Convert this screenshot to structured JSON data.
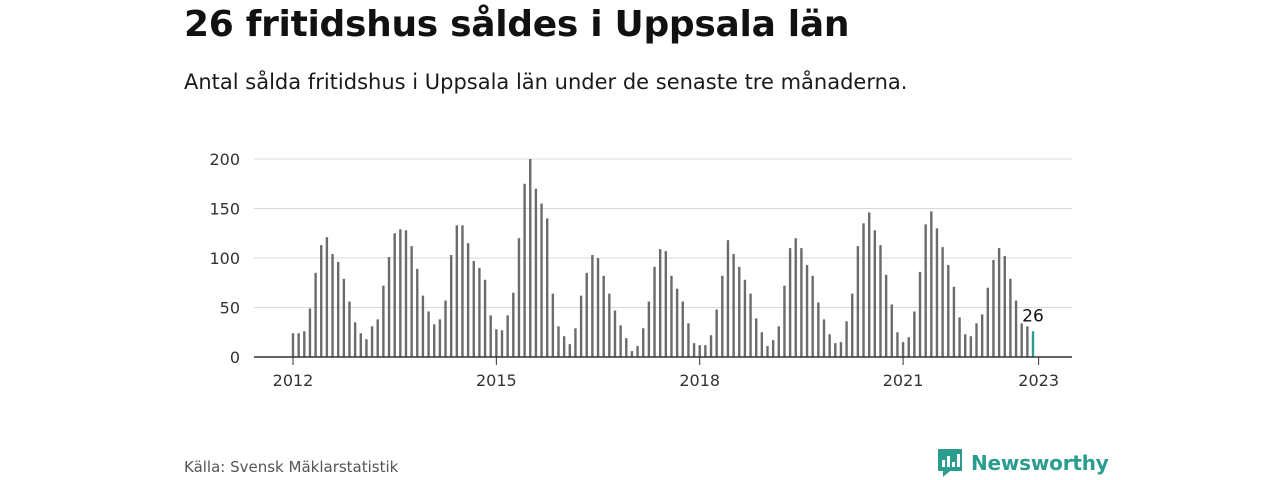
{
  "header": {
    "title": "26 fritidshus såldes i Uppsala län",
    "subtitle": "Antal sålda fritidshus i Uppsala län under de senaste tre månaderna."
  },
  "footer": {
    "source": "Källa: Svensk Mäklarstatistik",
    "brand": "Newsworthy",
    "brand_icon": "newsworthy-logo-icon"
  },
  "colors": {
    "bar": "#6b6b6b",
    "highlight": "#2a9d8f",
    "grid": "#d9d9d9",
    "axis": "#333333"
  },
  "chart_data": {
    "type": "bar",
    "title": "",
    "xlabel": "",
    "ylabel": "",
    "ylim": [
      0,
      200
    ],
    "yticks": [
      0,
      50,
      100,
      150,
      200
    ],
    "xticks": [
      {
        "label": "2012",
        "index": 0
      },
      {
        "label": "2015",
        "index": 36
      },
      {
        "label": "2018",
        "index": 72
      },
      {
        "label": "2021",
        "index": 108
      },
      {
        "label": "2023",
        "index": 132
      }
    ],
    "x_start": "2012-01",
    "x_end": "2023-01",
    "frequency": "monthly",
    "grid": true,
    "highlight_last": true,
    "last_label": "26",
    "values": [
      24,
      24,
      26,
      49,
      85,
      113,
      121,
      104,
      96,
      79,
      56,
      35,
      24,
      18,
      31,
      38,
      72,
      101,
      125,
      129,
      128,
      112,
      89,
      62,
      46,
      33,
      38,
      57,
      103,
      133,
      133,
      115,
      97,
      90,
      78,
      42,
      28,
      27,
      42,
      65,
      120,
      175,
      200,
      170,
      155,
      140,
      64,
      31,
      21,
      13,
      29,
      62,
      85,
      103,
      100,
      82,
      64,
      47,
      32,
      19,
      6,
      11,
      29,
      56,
      91,
      109,
      107,
      82,
      69,
      56,
      34,
      14,
      12,
      12,
      22,
      48,
      82,
      118,
      104,
      91,
      78,
      64,
      39,
      25,
      11,
      17,
      31,
      72,
      110,
      120,
      110,
      93,
      82,
      55,
      38,
      23,
      14,
      15,
      36,
      64,
      112,
      135,
      146,
      128,
      113,
      83,
      53,
      25,
      15,
      20,
      46,
      86,
      134,
      147,
      130,
      111,
      93,
      71,
      40,
      23,
      21,
      34,
      43,
      70,
      98,
      110,
      102,
      79,
      57,
      34,
      31,
      26
    ]
  }
}
